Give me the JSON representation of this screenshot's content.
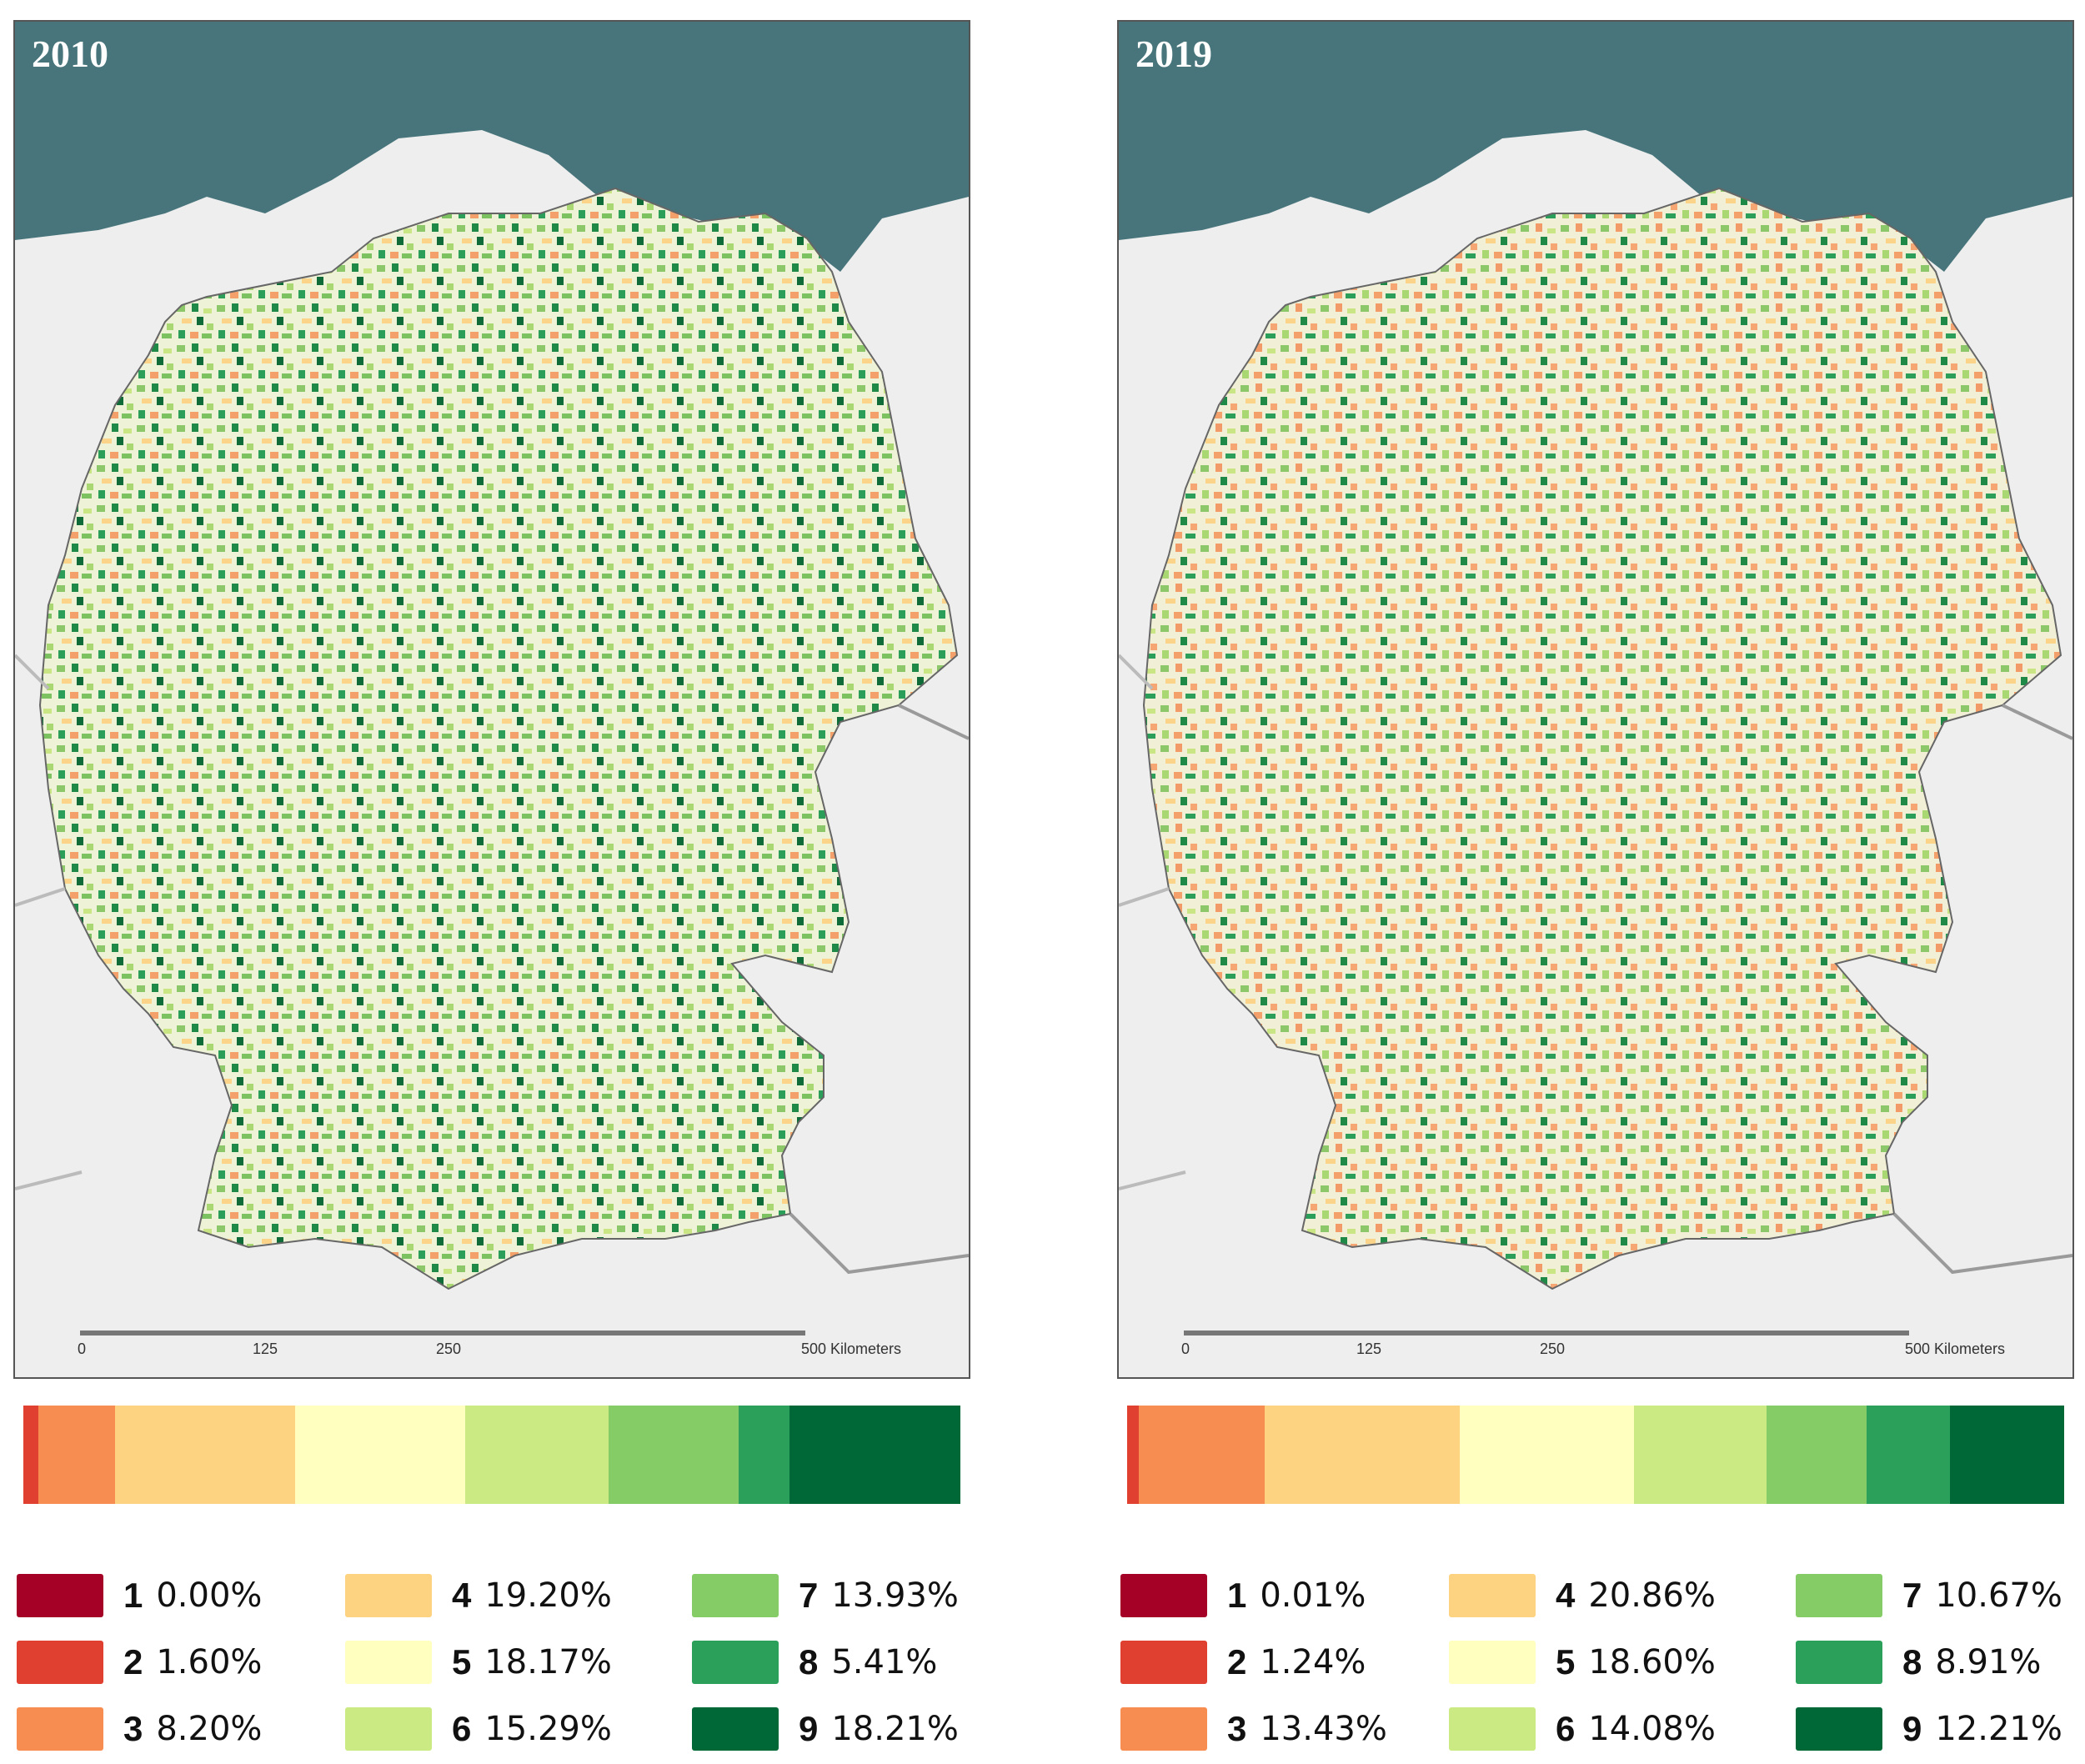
{
  "panels": [
    {
      "year": "2010",
      "scale": [
        "0",
        "125",
        "250",
        "500 Kilometers"
      ],
      "classes": [
        {
          "num": "1",
          "pct": "0.00%",
          "value": 0.0
        },
        {
          "num": "2",
          "pct": "1.60%",
          "value": 1.6
        },
        {
          "num": "3",
          "pct": "8.20%",
          "value": 8.2
        },
        {
          "num": "4",
          "pct": "19.20%",
          "value": 19.2
        },
        {
          "num": "5",
          "pct": "18.17%",
          "value": 18.17
        },
        {
          "num": "6",
          "pct": "15.29%",
          "value": 15.29
        },
        {
          "num": "7",
          "pct": "13.93%",
          "value": 13.93
        },
        {
          "num": "8",
          "pct": "5.41%",
          "value": 5.41
        },
        {
          "num": "9",
          "pct": "18.21%",
          "value": 18.21
        }
      ]
    },
    {
      "year": "2019",
      "scale": [
        "0",
        "125",
        "250",
        "500 Kilometers"
      ],
      "classes": [
        {
          "num": "1",
          "pct": "0.01%",
          "value": 0.01
        },
        {
          "num": "2",
          "pct": "1.24%",
          "value": 1.24
        },
        {
          "num": "3",
          "pct": "13.43%",
          "value": 13.43
        },
        {
          "num": "4",
          "pct": "20.86%",
          "value": 20.86
        },
        {
          "num": "5",
          "pct": "18.60%",
          "value": 18.6
        },
        {
          "num": "6",
          "pct": "14.08%",
          "value": 14.08
        },
        {
          "num": "7",
          "pct": "10.67%",
          "value": 10.67
        },
        {
          "num": "8",
          "pct": "8.91%",
          "value": 8.91
        },
        {
          "num": "9",
          "pct": "12.21%",
          "value": 12.21
        }
      ]
    }
  ],
  "class_colors": [
    "#a50026",
    "#e04030",
    "#f88d52",
    "#fdd280",
    "#ffffbf",
    "#ccea83",
    "#86cc66",
    "#2ba05a",
    "#006837"
  ],
  "map_colors": {
    "sea": "#48757b",
    "land": "#eeeeee",
    "country": "#f0f0ee",
    "border": "#9a9a9a"
  }
}
